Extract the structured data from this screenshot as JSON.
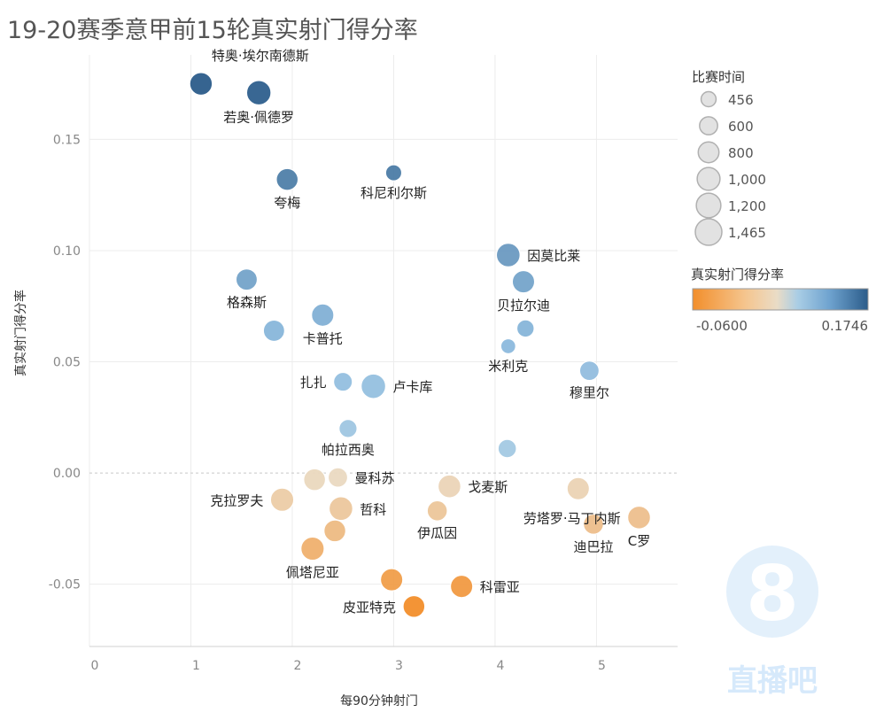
{
  "title": "19-20赛季意甲前15轮真实射门得分率",
  "watermark": {
    "text": "直播吧",
    "digit": "8"
  },
  "colors": {
    "low": "#f28e2b",
    "mid": "#dfe9ee",
    "high": "#2b5c8a",
    "mid_light": "#eadcc6",
    "blue_light": "#a9cde5"
  },
  "chart_data": {
    "type": "scatter",
    "xlabel": "每90分钟射门",
    "ylabel": "真实射门得分率",
    "xlim": [
      0,
      5.8
    ],
    "ylim": [
      -0.078,
      0.188
    ],
    "xticks": [
      0,
      1,
      2,
      3,
      4,
      5
    ],
    "yticks": [
      -0.05,
      0.0,
      0.05,
      0.1,
      0.15
    ],
    "ytick_labels": [
      "-0.05",
      "0.00",
      "0.05",
      "0.10",
      "0.15"
    ],
    "zero_line": true,
    "size_legend": {
      "title": "比赛时间",
      "entries": [
        {
          "value": 456,
          "label": "456"
        },
        {
          "value": 600,
          "label": "600"
        },
        {
          "value": 800,
          "label": "800"
        },
        {
          "value": 1000,
          "label": "1,000"
        },
        {
          "value": 1200,
          "label": "1,200"
        },
        {
          "value": 1465,
          "label": "1,465"
        }
      ]
    },
    "color_legend": {
      "title": "真实射门得分率",
      "min": -0.06,
      "max": 0.1746,
      "min_label": "-0.0600",
      "max_label": "0.1746"
    },
    "points": [
      {
        "name": "特奥·埃尔南德斯",
        "x": 1.1,
        "y": 0.175,
        "minutes": 980,
        "label": "特奥·埃尔南德斯",
        "label_pos": "above-right"
      },
      {
        "name": "若奥·佩德罗",
        "x": 1.67,
        "y": 0.171,
        "minutes": 1180,
        "label": "若奥·佩德罗",
        "label_pos": "below"
      },
      {
        "name": "夸梅",
        "x": 1.95,
        "y": 0.132,
        "minutes": 900,
        "label": "夸梅",
        "label_pos": "below"
      },
      {
        "name": "科尼利尔斯",
        "x": 3.0,
        "y": 0.135,
        "minutes": 500,
        "label": "科尼利尔斯",
        "label_pos": "below"
      },
      {
        "name": "因莫比莱",
        "x": 4.13,
        "y": 0.098,
        "minutes": 1100,
        "label": "因莫比莱",
        "label_pos": "right"
      },
      {
        "name": "贝拉尔迪",
        "x": 4.28,
        "y": 0.086,
        "minutes": 950,
        "label": "贝拉尔迪",
        "label_pos": "below"
      },
      {
        "name": "格森斯",
        "x": 1.55,
        "y": 0.087,
        "minutes": 850,
        "label": "格森斯",
        "label_pos": "below"
      },
      {
        "name": "卡普托",
        "x": 2.3,
        "y": 0.071,
        "minutes": 950,
        "label": "卡普托",
        "label_pos": "below"
      },
      {
        "name": "",
        "x": 1.82,
        "y": 0.064,
        "minutes": 850,
        "label": "",
        "label_pos": "none"
      },
      {
        "name": "",
        "x": 4.3,
        "y": 0.065,
        "minutes": 560,
        "label": "",
        "label_pos": "none"
      },
      {
        "name": "米利克",
        "x": 4.13,
        "y": 0.057,
        "minutes": 456,
        "label": "米利克",
        "label_pos": "below"
      },
      {
        "name": "穆里尔",
        "x": 4.93,
        "y": 0.046,
        "minutes": 700,
        "label": "穆里尔",
        "label_pos": "below"
      },
      {
        "name": "扎扎",
        "x": 2.5,
        "y": 0.041,
        "minutes": 650,
        "label": "扎扎",
        "label_pos": "left"
      },
      {
        "name": "卢卡库",
        "x": 2.8,
        "y": 0.039,
        "minutes": 1200,
        "label": "卢卡库",
        "label_pos": "right"
      },
      {
        "name": "帕拉西奥",
        "x": 2.55,
        "y": 0.02,
        "minutes": 600,
        "label": "帕拉西奥",
        "label_pos": "below"
      },
      {
        "name": "",
        "x": 4.12,
        "y": 0.011,
        "minutes": 620,
        "label": "",
        "label_pos": "none"
      },
      {
        "name": "曼科苏",
        "x": 2.45,
        "y": -0.002,
        "minutes": 700,
        "label": "曼科苏",
        "label_pos": "right"
      },
      {
        "name": "",
        "x": 2.22,
        "y": -0.003,
        "minutes": 900,
        "label": "",
        "label_pos": "none"
      },
      {
        "name": "戈麦斯",
        "x": 3.55,
        "y": -0.006,
        "minutes": 1000,
        "label": "戈麦斯",
        "label_pos": "right"
      },
      {
        "name": "",
        "x": 4.82,
        "y": -0.007,
        "minutes": 950,
        "label": "",
        "label_pos": "none"
      },
      {
        "name": "克拉罗夫",
        "x": 1.9,
        "y": -0.012,
        "minutes": 1050,
        "label": "克拉罗夫",
        "label_pos": "left"
      },
      {
        "name": "哲科",
        "x": 2.48,
        "y": -0.016,
        "minutes": 1100,
        "label": "哲科",
        "label_pos": "right"
      },
      {
        "name": "伊瓜因",
        "x": 3.43,
        "y": -0.017,
        "minutes": 750,
        "label": "伊瓜因",
        "label_pos": "below"
      },
      {
        "name": "劳塔罗·马丁内斯",
        "x": 5.42,
        "y": -0.02,
        "minutes": 1000,
        "label": "劳塔罗·马丁内斯",
        "label_pos": "left"
      },
      {
        "name": "迪巴拉",
        "x": 4.97,
        "y": -0.023,
        "minutes": 750,
        "label": "迪巴拉",
        "label_pos": "below"
      },
      {
        "name": "C罗",
        "x": 5.42,
        "y": -0.02,
        "minutes": 1000,
        "label": "C罗",
        "label_pos": "below"
      },
      {
        "name": "",
        "x": 2.42,
        "y": -0.026,
        "minutes": 900,
        "label": "",
        "label_pos": "none"
      },
      {
        "name": "佩塔尼亚",
        "x": 2.2,
        "y": -0.034,
        "minutes": 1050,
        "label": "佩塔尼亚",
        "label_pos": "below"
      },
      {
        "name": "科雷亚",
        "x": 3.67,
        "y": -0.051,
        "minutes": 950,
        "label": "科雷亚",
        "label_pos": "right"
      },
      {
        "name": "",
        "x": 2.98,
        "y": -0.048,
        "minutes": 950,
        "label": "",
        "label_pos": "none"
      },
      {
        "name": "皮亚特克",
        "x": 3.2,
        "y": -0.06,
        "minutes": 900,
        "label": "皮亚特克",
        "label_pos": "left"
      }
    ]
  }
}
